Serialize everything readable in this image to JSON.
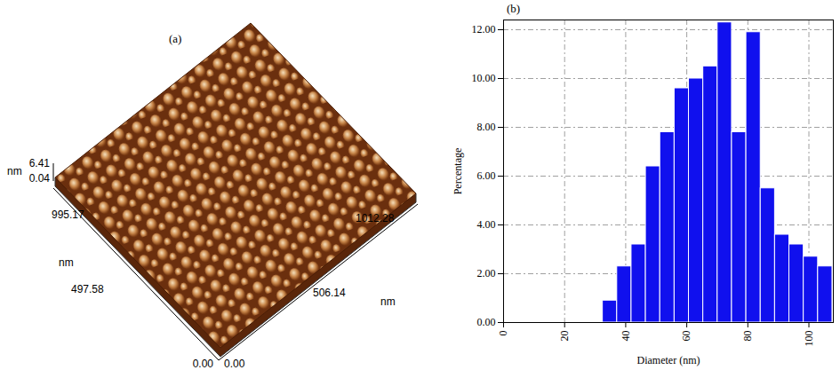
{
  "chart_data": {
    "type": "histogram",
    "title": "(b)",
    "x_label": "Diameter (nm)",
    "y_label": "Percentage",
    "bins": [
      32.5,
      37.2,
      41.9,
      46.6,
      51.3,
      56.0,
      60.7,
      65.4,
      70.1,
      74.8,
      79.5,
      84.2,
      88.9,
      93.6,
      98.3,
      103.0,
      107.7
    ],
    "values": [
      0.9,
      2.3,
      3.2,
      6.4,
      7.8,
      9.6,
      10.0,
      10.5,
      12.3,
      7.8,
      11.9,
      5.5,
      3.6,
      3.2,
      2.7,
      2.3
    ],
    "color": "#1010ee",
    "xlim": [
      0,
      108
    ],
    "ylim": [
      0,
      12.4
    ],
    "xticks": [
      0,
      20,
      40,
      60,
      80,
      100
    ],
    "yticks": [
      {
        "value": 0,
        "label": "0.00"
      },
      {
        "value": 2,
        "label": "2.00"
      },
      {
        "value": 4,
        "label": "4.00"
      },
      {
        "value": 6,
        "label": "6.00"
      },
      {
        "value": 8,
        "label": "8.00"
      },
      {
        "value": 10,
        "label": "10.00"
      },
      {
        "value": 12,
        "label": "12.00"
      }
    ],
    "grid": true
  },
  "afm_image": {
    "label": "(a)",
    "z_axis": {
      "unit": "nm",
      "ticks": [
        "6.41",
        "0.04"
      ]
    },
    "y_axis": {
      "unit": "nm",
      "ticks": [
        "995.17",
        "497.58",
        "0.00"
      ]
    },
    "x_axis": {
      "unit": "nm",
      "ticks": [
        "1012.28",
        "506.14",
        "0.00"
      ]
    }
  }
}
